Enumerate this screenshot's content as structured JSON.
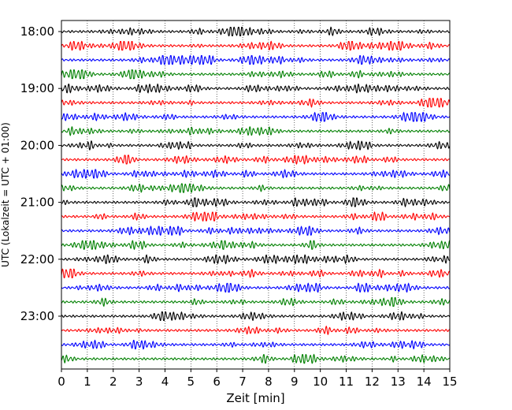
{
  "chart_data": {
    "type": "line",
    "title": "",
    "xlabel": "Zeit  [min]",
    "ylabel": "UTC (Lokalzeit = UTC + 01:00)",
    "xlim": [
      0,
      15
    ],
    "x_ticks": [
      "0",
      "1",
      "2",
      "3",
      "4",
      "5",
      "6",
      "7",
      "8",
      "9",
      "10",
      "11",
      "12",
      "13",
      "14",
      "15"
    ],
    "y_tick_labels": [
      "18:00",
      "19:00",
      "20:00",
      "21:00",
      "22:00",
      "23:00"
    ],
    "grid": "vertical dotted",
    "legend": "none",
    "trace_colors": [
      "#000000",
      "#ff0000",
      "#0000ff",
      "#008000"
    ],
    "series": [
      {
        "start": "18:00"
      },
      {
        "start": "18:15"
      },
      {
        "start": "18:30"
      },
      {
        "start": "18:45"
      },
      {
        "start": "19:00"
      },
      {
        "start": "19:15"
      },
      {
        "start": "19:30"
      },
      {
        "start": "19:45"
      },
      {
        "start": "20:00"
      },
      {
        "start": "20:15"
      },
      {
        "start": "20:30"
      },
      {
        "start": "20:45"
      },
      {
        "start": "21:00"
      },
      {
        "start": "21:15"
      },
      {
        "start": "21:30"
      },
      {
        "start": "21:45"
      },
      {
        "start": "22:00"
      },
      {
        "start": "22:15"
      },
      {
        "start": "22:30"
      },
      {
        "start": "22:45"
      },
      {
        "start": "23:00"
      },
      {
        "start": "23:15"
      },
      {
        "start": "23:30"
      },
      {
        "start": "23:45"
      }
    ]
  }
}
